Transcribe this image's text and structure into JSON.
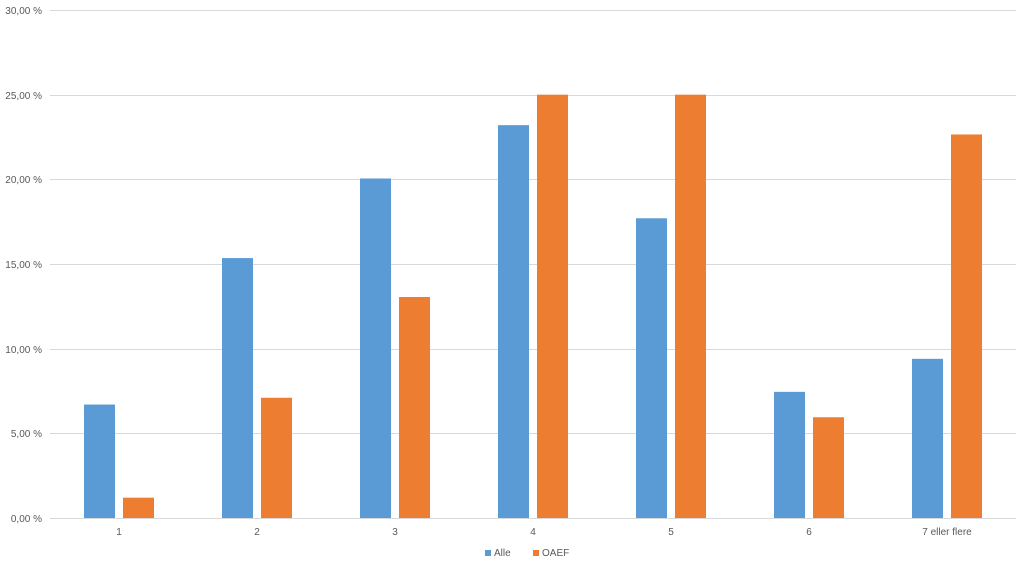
{
  "chart_data": {
    "type": "bar",
    "categories": [
      "1",
      "2",
      "3",
      "4",
      "5",
      "6",
      "7 eller flere"
    ],
    "series": [
      {
        "name": "Alle",
        "color": "#5B9BD5",
        "values": [
          6.7,
          15.35,
          20.05,
          23.2,
          17.7,
          7.45,
          9.4
        ]
      },
      {
        "name": "OAEF",
        "color": "#ED7D31",
        "values": [
          1.2,
          7.1,
          13.05,
          25.0,
          25.0,
          5.95,
          22.65
        ]
      }
    ],
    "y_tick_labels": [
      "0,00 %",
      "5,00 %",
      "10,00 %",
      "15,00 %",
      "20,00 %",
      "25,00 %",
      "30,00 %"
    ],
    "ylim": [
      0,
      30
    ],
    "y_step": 5,
    "grid": true,
    "legend_position": "bottom-center",
    "grid_color": "#D9D9D9"
  }
}
